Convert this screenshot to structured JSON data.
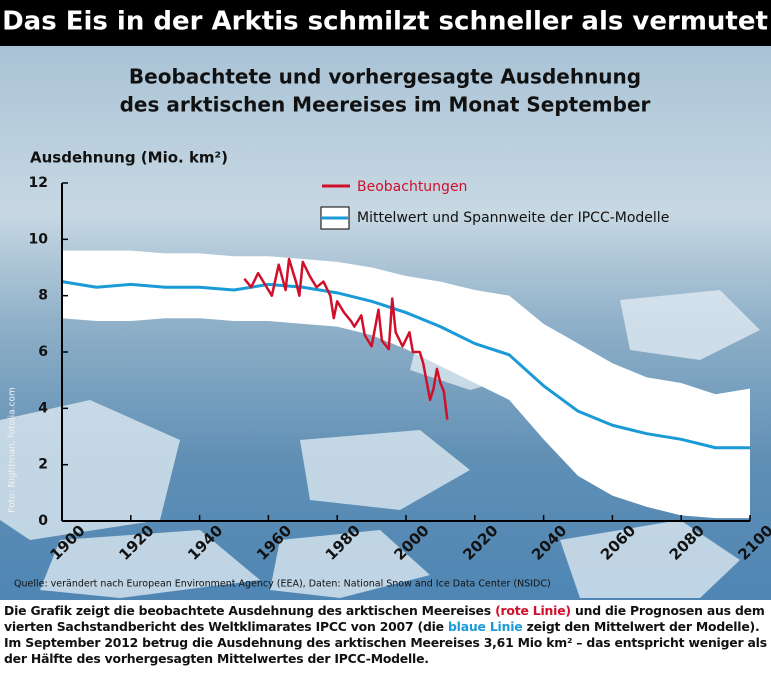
{
  "header": {
    "title": "Das Eis in der Arktis schmilzt schneller als vermutet"
  },
  "chart_data": {
    "type": "line",
    "title": [
      "Beobachtete und vorhergesagte Ausdehnung",
      "des arktischen Meereises im Monat September"
    ],
    "ylabel": "Ausdehnung (Mio. km²)",
    "xlim": [
      1900,
      2100
    ],
    "xticks": [
      1900,
      1920,
      1940,
      1960,
      1980,
      2000,
      2020,
      2040,
      2060,
      2080,
      2100
    ],
    "ylim": [
      0,
      12
    ],
    "yticks": [
      0,
      2,
      4,
      6,
      8,
      10,
      12
    ],
    "series": [
      {
        "name": "Beobachtungen",
        "color": "#d0102a",
        "x": [
          1953,
          1955,
          1957,
          1959,
          1961,
          1963,
          1965,
          1966,
          1968,
          1969,
          1970,
          1972,
          1974,
          1976,
          1978,
          1979,
          1980,
          1982,
          1984,
          1985,
          1987,
          1988,
          1990,
          1992,
          1993,
          1995,
          1996,
          1997,
          1999,
          2001,
          2002,
          2004,
          2005,
          2007,
          2008,
          2009,
          2010,
          2011,
          2012
        ],
        "values": [
          8.6,
          8.3,
          8.8,
          8.4,
          8.0,
          9.1,
          8.2,
          9.3,
          8.5,
          8.0,
          9.2,
          8.7,
          8.3,
          8.5,
          8.0,
          7.2,
          7.8,
          7.4,
          7.1,
          6.9,
          7.3,
          6.6,
          6.2,
          7.5,
          6.4,
          6.1,
          7.9,
          6.7,
          6.2,
          6.7,
          6.0,
          6.0,
          5.6,
          4.3,
          4.7,
          5.4,
          4.9,
          4.6,
          3.6
        ]
      },
      {
        "name": "Mittelwert und Spannweite der IPCC-Modelle",
        "color": "#1a9ad6",
        "x": [
          1900,
          1910,
          1920,
          1930,
          1940,
          1950,
          1960,
          1970,
          1980,
          1990,
          2000,
          2010,
          2020,
          2030,
          2040,
          2050,
          2060,
          2070,
          2080,
          2090,
          2100
        ],
        "values": [
          8.5,
          8.3,
          8.4,
          8.3,
          8.3,
          8.2,
          8.4,
          8.3,
          8.1,
          7.8,
          7.4,
          6.9,
          6.3,
          5.9,
          4.8,
          3.9,
          3.4,
          3.1,
          2.9,
          2.6,
          2.6
        ],
        "high": [
          9.6,
          9.6,
          9.6,
          9.5,
          9.5,
          9.4,
          9.4,
          9.3,
          9.2,
          9.0,
          8.7,
          8.5,
          8.2,
          8.0,
          7.0,
          6.3,
          5.6,
          5.1,
          4.9,
          4.5,
          4.7
        ],
        "low": [
          7.2,
          7.1,
          7.1,
          7.2,
          7.2,
          7.1,
          7.1,
          7.0,
          6.9,
          6.6,
          6.1,
          5.5,
          4.9,
          4.3,
          2.9,
          1.6,
          0.9,
          0.5,
          0.2,
          0.1,
          0.1
        ]
      }
    ],
    "band_color": "#ffffff",
    "photo_credit": "Foto: Nightman, fotolia.com",
    "source": "Quelle: verändert nach European Environment Agency (EEA), Daten: National Snow and Ice Data Center (NSIDC)"
  },
  "caption": {
    "parts": [
      "Die Grafik zeigt die beobachtete Ausdehnung des arktischen Meereises ",
      "(rote Linie)",
      " und die Prognosen aus dem vierten Sachstandbericht des Weltklimarates IPCC von 2007 (die ",
      "blaue Linie",
      " zeigt den Mittelwert der Modelle). Im September 2012 betrug die Ausdehnung des arktischen Meereises 3,61 Mio km² – das entspricht weniger als der Hälfte des vorhergesagten Mittelwertes der IPCC-Modelle."
    ]
  }
}
